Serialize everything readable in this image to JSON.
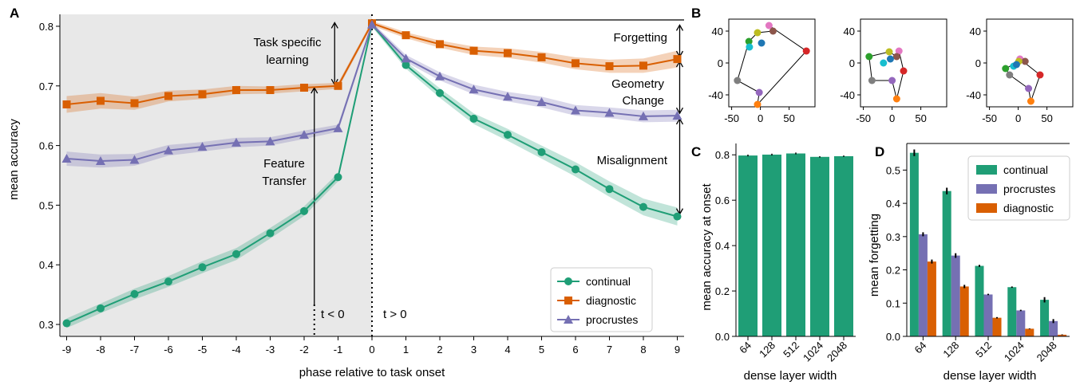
{
  "colors": {
    "continual": "#1f9e76",
    "diagnostic": "#d95f02",
    "procrustes": "#7570b3",
    "shade": "#e8e8e8",
    "error": "#000000"
  },
  "panels": [
    "A",
    "B",
    "C",
    "D"
  ],
  "chart_data": [
    {
      "id": "A",
      "type": "line",
      "xlabel": "phase relative to task onset",
      "ylabel": "mean accuracy",
      "xlim": [
        -9,
        9
      ],
      "ylim": [
        0.28,
        0.82
      ],
      "x": [
        -9,
        -8,
        -7,
        -6,
        -5,
        -4,
        -3,
        -2,
        -1,
        0,
        1,
        2,
        3,
        4,
        5,
        6,
        7,
        8,
        9
      ],
      "xticks": [
        "-9",
        "-8",
        "-7",
        "-6",
        "-5",
        "-4",
        "-3",
        "-2",
        "-1",
        "0",
        "1",
        "2",
        "3",
        "4",
        "5",
        "6",
        "7",
        "8",
        "9"
      ],
      "yticks": [
        "0.3",
        "0.4",
        "0.5",
        "0.6",
        "0.7",
        "0.8"
      ],
      "yticks_values": [
        0.3,
        0.4,
        0.5,
        0.6,
        0.7,
        0.8
      ],
      "series": [
        {
          "name": "continual",
          "marker": "circle",
          "values": [
            0.302,
            0.327,
            0.351,
            0.372,
            0.396,
            0.418,
            0.453,
            0.49,
            0.547,
            0.803,
            0.735,
            0.688,
            0.645,
            0.618,
            0.589,
            0.56,
            0.527,
            0.497,
            0.481
          ],
          "band": [
            0.008,
            0.008,
            0.009,
            0.009,
            0.01,
            0.01,
            0.009,
            0.008,
            0.007,
            0.004,
            0.006,
            0.008,
            0.009,
            0.01,
            0.011,
            0.012,
            0.013,
            0.014,
            0.015
          ]
        },
        {
          "name": "diagnostic",
          "marker": "square",
          "values": [
            0.669,
            0.675,
            0.671,
            0.683,
            0.686,
            0.693,
            0.693,
            0.697,
            0.7,
            0.805,
            0.785,
            0.77,
            0.759,
            0.755,
            0.748,
            0.738,
            0.733,
            0.734,
            0.745
          ],
          "band": [
            0.014,
            0.013,
            0.011,
            0.009,
            0.008,
            0.007,
            0.006,
            0.006,
            0.005,
            0.004,
            0.005,
            0.006,
            0.007,
            0.008,
            0.009,
            0.01,
            0.011,
            0.012,
            0.014
          ]
        },
        {
          "name": "procrustes",
          "marker": "triangle",
          "values": [
            0.578,
            0.574,
            0.576,
            0.592,
            0.598,
            0.605,
            0.607,
            0.618,
            0.629,
            0.803,
            0.746,
            0.716,
            0.694,
            0.682,
            0.673,
            0.659,
            0.655,
            0.649,
            0.65
          ],
          "band": [
            0.012,
            0.011,
            0.01,
            0.009,
            0.008,
            0.008,
            0.007,
            0.007,
            0.006,
            0.004,
            0.006,
            0.007,
            0.008,
            0.008,
            0.009,
            0.009,
            0.009,
            0.01,
            0.01
          ]
        }
      ],
      "annotations": {
        "task_specific": [
          "Task specific",
          "learning"
        ],
        "feature_transfer": [
          "Feature",
          "Transfer"
        ],
        "forgetting": "Forgetting",
        "geometry": [
          "Geometry",
          "Change"
        ],
        "misalignment": "Misalignment",
        "t_neg": "t < 0",
        "t_pos": "t > 0"
      },
      "shaded_region": [
        -9.2,
        0
      ],
      "legend_position": "lower-right"
    },
    {
      "id": "B",
      "type": "scatter",
      "subplots": [
        {
          "xlim": [
            -55,
            95
          ],
          "ylim": [
            -55,
            55
          ],
          "points": [
            {
              "x": 15,
              "y": 47,
              "color": "#e377c2"
            },
            {
              "x": 22,
              "y": 40,
              "color": "#8c564b"
            },
            {
              "x": 80,
              "y": 15,
              "color": "#d62728"
            },
            {
              "x": -5,
              "y": 38,
              "color": "#bcbd22"
            },
            {
              "x": -20,
              "y": 27,
              "color": "#2ca02c"
            },
            {
              "x": -19,
              "y": 20,
              "color": "#17becf"
            },
            {
              "x": 2,
              "y": 25,
              "color": "#1f77b4"
            },
            {
              "x": -40,
              "y": -22,
              "color": "#7f7f7f"
            },
            {
              "x": -2,
              "y": -37,
              "color": "#9467bd"
            },
            {
              "x": -5,
              "y": -52,
              "color": "#ff7f0e"
            }
          ],
          "loop": [
            0,
            2,
            9,
            8,
            7,
            4,
            3,
            1,
            0
          ]
        },
        {
          "xlim": [
            -55,
            95
          ],
          "ylim": [
            -55,
            55
          ],
          "points": [
            {
              "x": 12,
              "y": 15,
              "color": "#e377c2"
            },
            {
              "x": 8,
              "y": 8,
              "color": "#8c564b"
            },
            {
              "x": 20,
              "y": -10,
              "color": "#d62728"
            },
            {
              "x": -5,
              "y": 14,
              "color": "#bcbd22"
            },
            {
              "x": -40,
              "y": 8,
              "color": "#2ca02c"
            },
            {
              "x": -15,
              "y": 0,
              "color": "#17becf"
            },
            {
              "x": -3,
              "y": 5,
              "color": "#1f77b4"
            },
            {
              "x": -35,
              "y": -22,
              "color": "#7f7f7f"
            },
            {
              "x": 0,
              "y": -22,
              "color": "#9467bd"
            },
            {
              "x": 8,
              "y": -45,
              "color": "#ff7f0e"
            }
          ],
          "loop": [
            0,
            2,
            9,
            8,
            7,
            4,
            3,
            1,
            0
          ]
        },
        {
          "xlim": [
            -55,
            95
          ],
          "ylim": [
            -55,
            55
          ],
          "points": [
            {
              "x": 3,
              "y": 5,
              "color": "#e377c2"
            },
            {
              "x": 12,
              "y": 2,
              "color": "#8c564b"
            },
            {
              "x": 38,
              "y": -15,
              "color": "#d62728"
            },
            {
              "x": 1,
              "y": 2,
              "color": "#bcbd22"
            },
            {
              "x": -22,
              "y": -7,
              "color": "#2ca02c"
            },
            {
              "x": -8,
              "y": -4,
              "color": "#17becf"
            },
            {
              "x": -3,
              "y": -2,
              "color": "#1f77b4"
            },
            {
              "x": -15,
              "y": -15,
              "color": "#7f7f7f"
            },
            {
              "x": 18,
              "y": -32,
              "color": "#9467bd"
            },
            {
              "x": 22,
              "y": -48,
              "color": "#ff7f0e"
            }
          ],
          "loop": [
            0,
            2,
            9,
            8,
            7,
            4,
            3,
            1,
            0
          ]
        }
      ],
      "xticks": [
        "-50",
        "0",
        "50"
      ],
      "xticks_values": [
        -50,
        0,
        50
      ],
      "yticks": [
        "40",
        "0",
        "-40"
      ],
      "yticks_values": [
        40,
        0,
        -40
      ]
    },
    {
      "id": "C",
      "type": "bar",
      "categories": [
        "64",
        "128",
        "512",
        "1024",
        "2048"
      ],
      "values": [
        0.797,
        0.801,
        0.806,
        0.791,
        0.794
      ],
      "errors": [
        0.004,
        0.004,
        0.004,
        0.003,
        0.003
      ],
      "xlabel": "dense layer width",
      "ylabel": "mean accuracy at onset",
      "ylim": [
        0,
        0.85
      ],
      "yticks": [
        "0.0",
        "0.2",
        "0.4",
        "0.6",
        "0.8"
      ],
      "yticks_values": [
        0,
        0.2,
        0.4,
        0.6,
        0.8
      ]
    },
    {
      "id": "D",
      "type": "bar",
      "categories": [
        "64",
        "128",
        "512",
        "1024",
        "2048"
      ],
      "series": [
        {
          "name": "continual",
          "values": [
            0.552,
            0.437,
            0.212,
            0.148,
            0.11
          ],
          "errors": [
            0.01,
            0.01,
            0.003,
            0.002,
            0.008
          ]
        },
        {
          "name": "procrustes",
          "values": [
            0.307,
            0.243,
            0.126,
            0.078,
            0.046
          ],
          "errors": [
            0.006,
            0.007,
            0.002,
            0.002,
            0.006
          ]
        },
        {
          "name": "diagnostic",
          "values": [
            0.225,
            0.15,
            0.056,
            0.023,
            0.005
          ],
          "errors": [
            0.006,
            0.005,
            0.002,
            0.001,
            0.001
          ]
        }
      ],
      "xlabel": "dense layer width",
      "ylabel": "mean forgetting",
      "ylim": [
        0,
        0.58
      ],
      "yticks": [
        "0.0",
        "0.1",
        "0.2",
        "0.3",
        "0.4",
        "0.5"
      ],
      "yticks_values": [
        0,
        0.1,
        0.2,
        0.3,
        0.4,
        0.5
      ],
      "legend_position": "top-right"
    }
  ]
}
